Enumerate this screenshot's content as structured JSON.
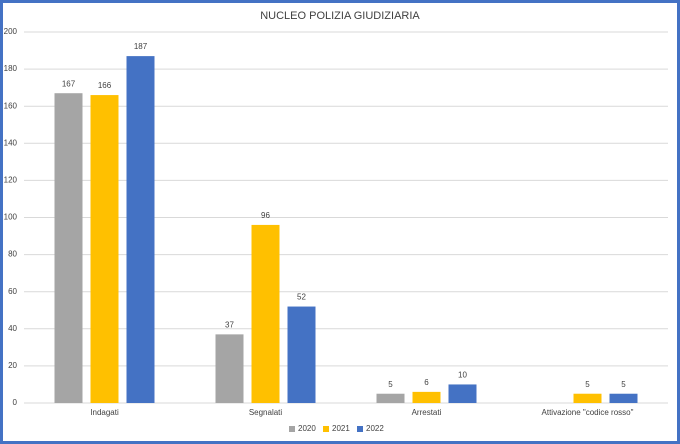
{
  "chart_data": {
    "type": "bar",
    "title": "NUCLEO POLIZIA GIUDIZIARIA",
    "categories": [
      "Indagati",
      "Segnalati",
      "Arrestati",
      "Attivazione \"codice rosso\""
    ],
    "series": [
      {
        "name": "2020",
        "color": "#a5a5a5",
        "values": [
          167,
          37,
          5,
          null
        ]
      },
      {
        "name": "2021",
        "color": "#ffc000",
        "values": [
          166,
          96,
          6,
          5
        ]
      },
      {
        "name": "2022",
        "color": "#4472c4",
        "values": [
          187,
          52,
          10,
          5
        ]
      }
    ],
    "ylim": [
      0,
      200
    ],
    "yticks": [
      0,
      20,
      40,
      60,
      80,
      100,
      120,
      140,
      160,
      180,
      200
    ],
    "grid": true,
    "legend": "bottom"
  }
}
